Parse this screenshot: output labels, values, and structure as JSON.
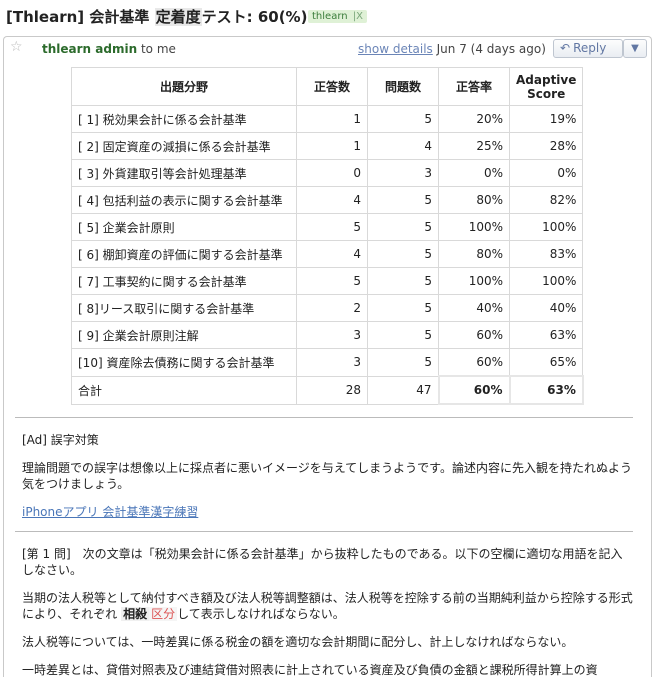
{
  "subject": {
    "prefix": "[Thlearn] 会計基準 ",
    "highlight": "定着度",
    "suffix": "テスト: 60(%)"
  },
  "label": {
    "name": "thlearn",
    "close": "|X"
  },
  "message": {
    "sender": "thlearn admin",
    "to": "to me",
    "show_details": "show details",
    "date": "Jun 7 (4 days ago)",
    "reply": "Reply",
    "star_icon": "star-icon",
    "reply_icon": "reply-arrow-icon",
    "more_icon": "chevron-down-icon"
  },
  "table": {
    "headers": [
      "出題分野",
      "正答数",
      "問題数",
      "正答率",
      "Adaptive Score"
    ],
    "rows": [
      [
        "[ 1] 税効果会計に係る会計基準",
        "1",
        "5",
        "20%",
        "19%"
      ],
      [
        "[ 2] 固定資産の減損に係る会計基準",
        "1",
        "4",
        "25%",
        "28%"
      ],
      [
        "[ 3] 外貨建取引等会計処理基準",
        "0",
        "3",
        "0%",
        "0%"
      ],
      [
        "[ 4] 包括利益の表示に関する会計基準",
        "4",
        "5",
        "80%",
        "82%"
      ],
      [
        "[ 5] 企業会計原則",
        "5",
        "5",
        "100%",
        "100%"
      ],
      [
        "[ 6] 棚卸資産の評価に関する会計基準",
        "4",
        "5",
        "80%",
        "83%"
      ],
      [
        "[ 7] 工事契約に関する会計基準",
        "5",
        "5",
        "100%",
        "100%"
      ],
      [
        "[ 8]リース取引に関する会計基準",
        "2",
        "5",
        "40%",
        "40%"
      ],
      [
        "[ 9] 企業会計原則注解",
        "3",
        "5",
        "60%",
        "63%"
      ],
      [
        "[10] 資産除去債務に関する会計基準",
        "3",
        "5",
        "60%",
        "65%"
      ]
    ],
    "total": [
      "合計",
      "28",
      "47",
      "60%",
      "63%"
    ]
  },
  "ad": {
    "title": "[Ad] 誤字対策",
    "body": "理論問題での誤字は想像以上に採点者に悪いイメージを与えてしまうようです。論述内容に先入観を持たれぬよう気をつけましょう。",
    "link": "iPhoneアプリ 会計基準漢字練習"
  },
  "question": {
    "intro": "[第 1 問]　次の文章は「税効果会計に係る会計基準」から抜粋したものである。以下の空欄に適切な用語を記入しなさい。",
    "p1_before": "当期の法人税等として納付すべき額及び法人税等調整額は、法人税等を控除する前の当期純利益から控除する形式により、それぞれ ",
    "p1_tag1": "相殺",
    "p1_tag2": "区分",
    "p1_after": "して表示しなければならない。",
    "p2": "法人税等については、一時差異に係る税金の額を適切な会計期間に配分し、計上しなければならない。",
    "p3": "一時差異とは、貸借対照表及び連結貸借対照表に計上されている資産及び負債の金額と課税所得計算上の資"
  }
}
